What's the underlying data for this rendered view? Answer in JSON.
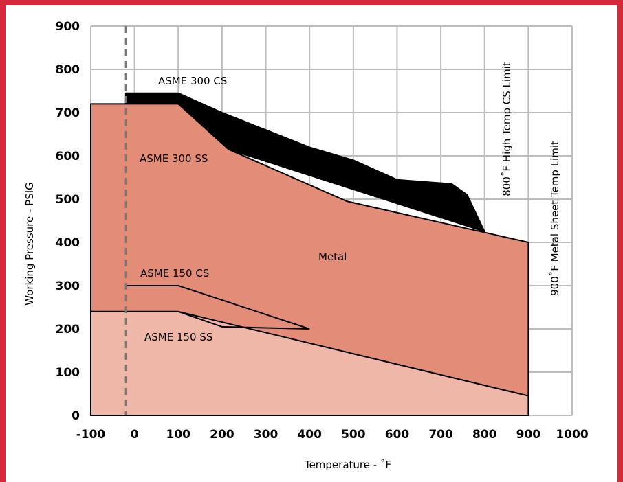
{
  "chart_data": {
    "type": "area",
    "xlabel": "Temperature - ˚F",
    "ylabel": "Working Pressure - PSIG",
    "xlim": [
      -100,
      1000
    ],
    "ylim": [
      0,
      900
    ],
    "x_ticks": [
      "-100",
      "0",
      "100",
      "200",
      "300",
      "400",
      "500",
      "600",
      "700",
      "800",
      "900",
      "1000"
    ],
    "y_ticks": [
      "0",
      "100",
      "200",
      "300",
      "400",
      "500",
      "600",
      "700",
      "800",
      "900"
    ],
    "grid": true,
    "colors": {
      "metal": "#e38c78",
      "asme_150_ss_region": "#efb7a8",
      "asme_300_cs_band": "#000000",
      "frame": "#d42a3a",
      "grid": "#bdbdbd",
      "dashed": "#777777"
    },
    "regions": [
      {
        "name": "ASME 300 CS",
        "points": [
          [
            -20,
            720
          ],
          [
            -20,
            745
          ],
          [
            100,
            745
          ],
          [
            200,
            700
          ],
          [
            250,
            680
          ],
          [
            400,
            620
          ],
          [
            500,
            590
          ],
          [
            600,
            545
          ],
          [
            725,
            535
          ],
          [
            760,
            510
          ],
          [
            800,
            425
          ],
          [
            200,
            620
          ],
          [
            100,
            720
          ]
        ]
      },
      {
        "name": "Metal",
        "points": [
          [
            -100,
            0
          ],
          [
            -100,
            720
          ],
          [
            100,
            720
          ],
          [
            215,
            615
          ],
          [
            485,
            495
          ],
          [
            900,
            400
          ],
          [
            900,
            0
          ]
        ]
      },
      {
        "name": "ASME 150 SS",
        "points": [
          [
            -100,
            0
          ],
          [
            -100,
            240
          ],
          [
            100,
            240
          ],
          [
            900,
            45
          ],
          [
            900,
            0
          ]
        ]
      }
    ],
    "series": [
      {
        "name": "ASME 150 CS",
        "x": [
          -20,
          100,
          400
        ],
        "y": [
          300,
          300,
          200
        ]
      },
      {
        "name": "ASME 150 SS",
        "x": [
          100,
          200,
          400
        ],
        "y": [
          240,
          205,
          200
        ]
      }
    ],
    "reference_lines": [
      {
        "x": -20,
        "style": "dashed"
      }
    ],
    "annotations": {
      "asme_300_cs": "ASME 300 CS",
      "asme_300_ss": "ASME 300 SS",
      "asme_150_cs": "ASME 150 CS",
      "asme_150_ss": "ASME 150 SS",
      "metal": "Metal",
      "limit_800": "800˚F High Temp CS Limit",
      "limit_900": "900˚F Metal Sheet Temp Limit"
    }
  }
}
